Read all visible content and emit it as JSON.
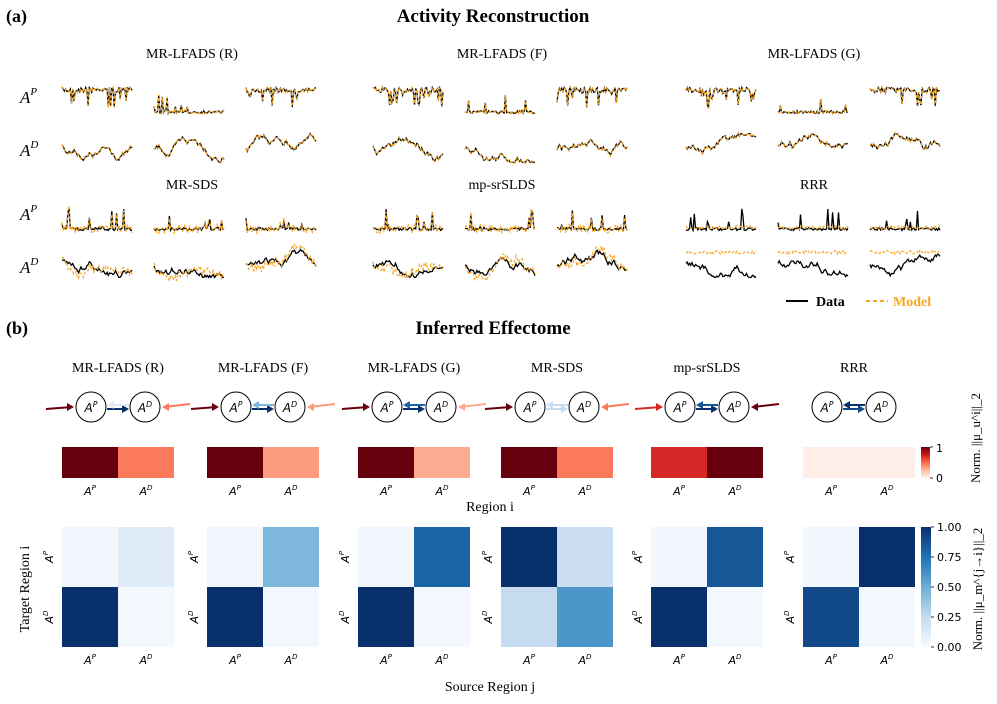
{
  "figure": {
    "panel_a_label": "(a)",
    "panel_a_title": "Activity Reconstruction",
    "panel_b_label": "(b)",
    "panel_b_title": "Inferred Effectome",
    "row_label_main": "A",
    "row_sup_p": "P",
    "row_sup_d": "D",
    "legend": {
      "data_label": "Data",
      "model_label": "Model"
    },
    "colors": {
      "data": "#000000",
      "model": "#f5a623",
      "reds_max": "#67000d",
      "blues_max": "#08306b"
    }
  },
  "chart_data": [
    {
      "type": "line",
      "title": "Activity Reconstruction",
      "series_names": [
        "Data",
        "Model"
      ],
      "methods": [
        {
          "name": "MR-LFADS (R)",
          "fit": "close"
        },
        {
          "name": "MR-LFADS (F)",
          "fit": "close"
        },
        {
          "name": "MR-LFADS (G)",
          "fit": "close"
        },
        {
          "name": "MR-SDS",
          "fit": "partial"
        },
        {
          "name": "mp-srSLDS",
          "fit": "partial"
        },
        {
          "name": "RRR",
          "fit": "poor"
        }
      ],
      "rows": [
        "A^P",
        "A^D"
      ],
      "traces_per_row": 3
    },
    {
      "type": "heatmap",
      "title": "Inferred Effectome",
      "row_vector": {
        "xlabel": "Region i",
        "tick_labels": [
          "A^P",
          "A^D"
        ],
        "cbar_label": "Norm. ||μ_u^i||_2",
        "cbar_ticks": [
          "1",
          "0"
        ],
        "vmin": 0,
        "vmax": 1,
        "colormap": "Reds",
        "values": {
          "MR-LFADS (R)": [
            1.0,
            0.45
          ],
          "MR-LFADS (F)": [
            1.0,
            0.35
          ],
          "MR-LFADS (G)": [
            1.0,
            0.3
          ],
          "MR-SDS": [
            1.0,
            0.45
          ],
          "mp-srSLDS": [
            0.7,
            1.0
          ],
          "RRR": [
            0.03,
            0.03
          ]
        }
      },
      "matrix": {
        "xlabel": "Source Region j",
        "ylabel": "Target Region i",
        "tick_labels": [
          "A^P",
          "A^D"
        ],
        "cbar_label": "Norm. ||μ_m^{j→i}||_2",
        "cbar_ticks": [
          "1.00",
          "0.75",
          "0.50",
          "0.25",
          "0.00"
        ],
        "vmin": 0,
        "vmax": 1,
        "colormap": "Blues",
        "values": {
          "MR-LFADS (R)": [
            [
              0.03,
              0.12
            ],
            [
              1.0,
              0.02
            ]
          ],
          "MR-LFADS (F)": [
            [
              0.03,
              0.45
            ],
            [
              1.0,
              0.02
            ]
          ],
          "MR-LFADS (G)": [
            [
              0.03,
              0.8
            ],
            [
              1.0,
              0.02
            ]
          ],
          "MR-SDS": [
            [
              1.0,
              0.22
            ],
            [
              0.25,
              0.6
            ]
          ],
          "mp-srSLDS": [
            [
              0.03,
              0.85
            ],
            [
              1.0,
              0.02
            ]
          ],
          "RRR": [
            [
              0.03,
              1.0
            ],
            [
              0.9,
              0.02
            ]
          ]
        }
      },
      "graph_nodes": [
        "A^P",
        "A^D"
      ]
    }
  ]
}
